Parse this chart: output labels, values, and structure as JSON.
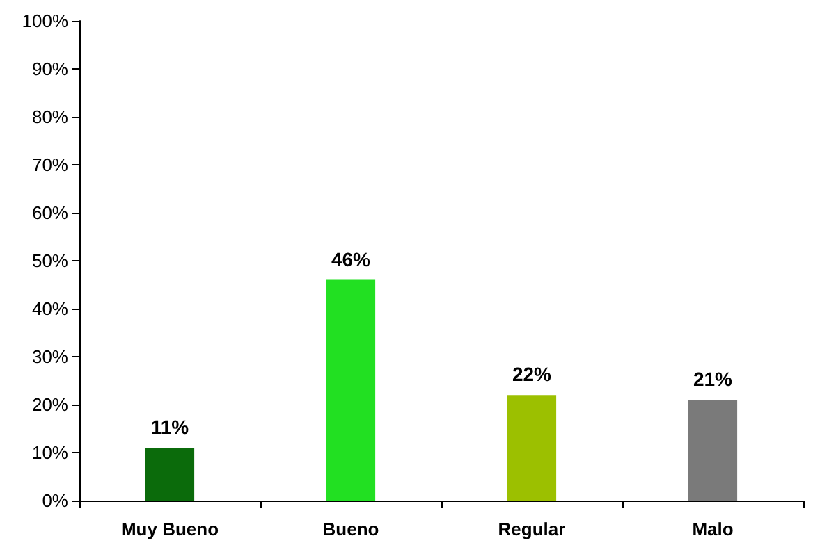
{
  "chart_data": {
    "type": "bar",
    "categories": [
      "Muy Bueno",
      "Bueno",
      "Regular",
      "Malo"
    ],
    "values": [
      11,
      46,
      22,
      21
    ],
    "colors": [
      "#0b6b0b",
      "#22e022",
      "#9cc000",
      "#7a7a7a"
    ],
    "value_labels": [
      "11%",
      "46%",
      "22%",
      "21%"
    ],
    "ylim": [
      0,
      100
    ],
    "yticks": [
      {
        "value": 0,
        "label": "0%"
      },
      {
        "value": 10,
        "label": "10%"
      },
      {
        "value": 20,
        "label": "20%"
      },
      {
        "value": 30,
        "label": "30%"
      },
      {
        "value": 40,
        "label": "40%"
      },
      {
        "value": 50,
        "label": "50%"
      },
      {
        "value": 60,
        "label": "60%"
      },
      {
        "value": 70,
        "label": "70%"
      },
      {
        "value": 80,
        "label": "80%"
      },
      {
        "value": 90,
        "label": "90%"
      },
      {
        "value": 100,
        "label": "100%"
      }
    ],
    "grid": false
  }
}
